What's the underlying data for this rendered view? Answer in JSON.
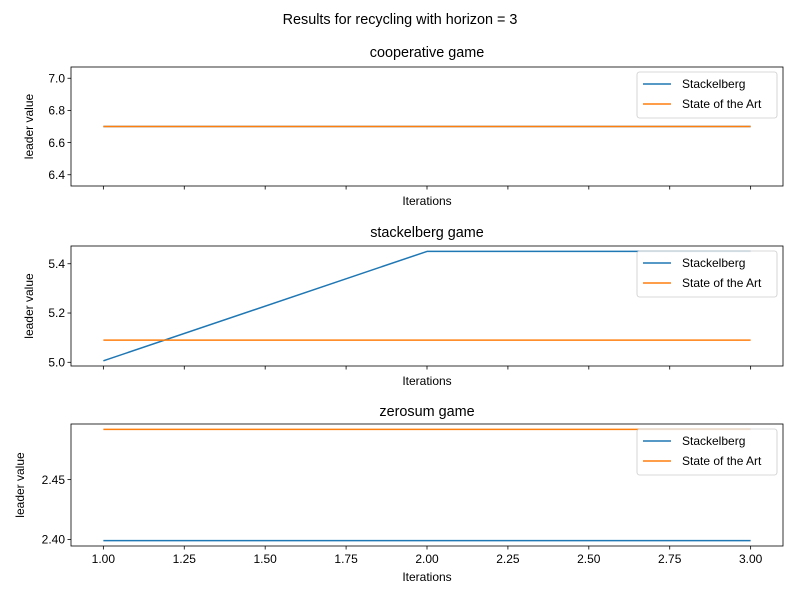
{
  "figure": {
    "suptitle": "Results for recycling with horizon = 3"
  },
  "colors": {
    "stackelberg": "#1f77b4",
    "state_of_the_art": "#ff7f0e",
    "axes": "#000000",
    "legend_border": "#cccccc"
  },
  "chart_data": [
    {
      "type": "line",
      "title": "cooperative game",
      "xlabel": "Iterations",
      "ylabel": "leader value",
      "xlim": [
        0.9,
        3.1
      ],
      "ylim": [
        6.33,
        7.07
      ],
      "x_ticks": [
        1.0,
        1.25,
        1.5,
        1.75,
        2.0,
        2.25,
        2.5,
        2.75,
        3.0
      ],
      "x_tick_labels_shown": false,
      "y_ticks": [
        6.4,
        6.6,
        6.8,
        7.0
      ],
      "y_tick_labels": [
        "6.4",
        "6.6",
        "6.8",
        "7.0"
      ],
      "legend": "top-right",
      "grid": false,
      "x": [
        1,
        2,
        3
      ],
      "series": [
        {
          "name": "Stackelberg",
          "values": [
            6.7,
            6.7,
            6.7
          ]
        },
        {
          "name": "State of the Art",
          "values": [
            6.7,
            6.7,
            6.7
          ]
        }
      ]
    },
    {
      "type": "line",
      "title": "stackelberg game",
      "xlabel": "Iterations",
      "ylabel": "leader value",
      "xlim": [
        0.9,
        3.1
      ],
      "ylim": [
        4.985,
        5.472
      ],
      "x_ticks": [
        1.0,
        1.25,
        1.5,
        1.75,
        2.0,
        2.25,
        2.5,
        2.75,
        3.0
      ],
      "x_tick_labels_shown": false,
      "y_ticks": [
        5.0,
        5.2,
        5.4
      ],
      "y_tick_labels": [
        "5.0",
        "5.2",
        "5.4"
      ],
      "legend": "top-right",
      "grid": false,
      "x": [
        1,
        2,
        3
      ],
      "series": [
        {
          "name": "Stackelberg",
          "values": [
            5.006,
            5.45,
            5.45
          ]
        },
        {
          "name": "State of the Art",
          "values": [
            5.09,
            5.09,
            5.09
          ]
        }
      ]
    },
    {
      "type": "line",
      "title": "zerosum game",
      "xlabel": "Iterations",
      "ylabel": "leader value",
      "xlim": [
        0.9,
        3.1
      ],
      "ylim": [
        2.3945,
        2.4965
      ],
      "x_ticks": [
        1.0,
        1.25,
        1.5,
        1.75,
        2.0,
        2.25,
        2.5,
        2.75,
        3.0
      ],
      "x_tick_labels": [
        "1.00",
        "1.25",
        "1.50",
        "1.75",
        "2.00",
        "2.25",
        "2.50",
        "2.75",
        "3.00"
      ],
      "x_tick_labels_shown": true,
      "y_ticks": [
        2.4,
        2.45
      ],
      "y_tick_labels": [
        "2.40",
        "2.45"
      ],
      "legend": "top-right",
      "grid": false,
      "x": [
        1,
        2,
        3
      ],
      "series": [
        {
          "name": "Stackelberg",
          "values": [
            2.399,
            2.399,
            2.399
          ]
        },
        {
          "name": "State of the Art",
          "values": [
            2.492,
            2.492,
            2.492
          ]
        }
      ]
    }
  ]
}
